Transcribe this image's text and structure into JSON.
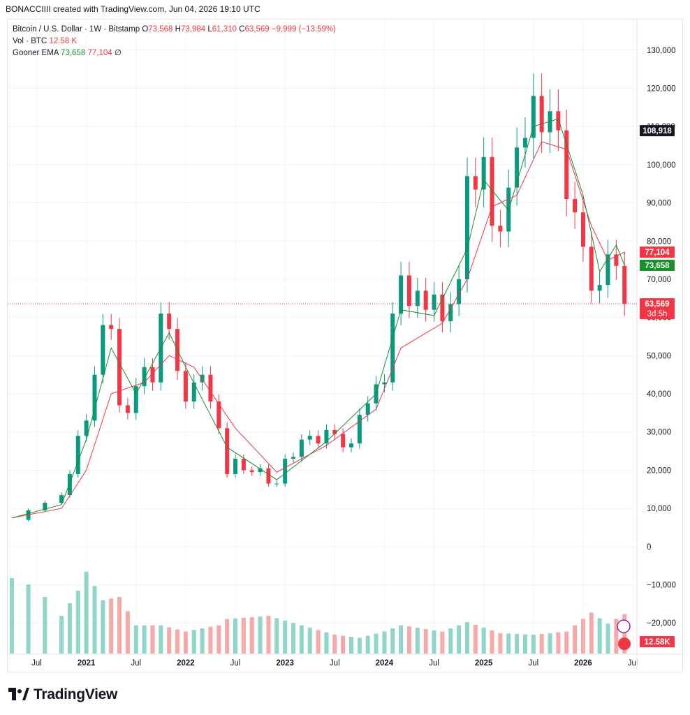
{
  "header": {
    "text": "BONACCIIII created with TradingView.com, Jun 04, 2026 19:10 UTC"
  },
  "legend": {
    "symbol": "Bitcoin / U.S. Dollar · 1W · Bitstamp",
    "o_label": "O",
    "o": "73,568",
    "h_label": "H",
    "h": "73,984",
    "l_label": "L",
    "l": "61,310",
    "c_label": "C",
    "c": "63,569",
    "change": "−9,999 (−13.59%)",
    "vol_label": "Vol · BTC",
    "vol": "12.58 K",
    "ema_label": "Gooner EMA",
    "ema_fast": "73,658",
    "ema_slow": "77,104",
    "ema_extra": "∅"
  },
  "price_badges": {
    "crosshair": "108,918",
    "ema_slow": "77,104",
    "ema_fast": "73,658",
    "last": "63,569",
    "countdown": "3d 5h",
    "volume": "12.58K"
  },
  "logo_text": "TradingView",
  "colors": {
    "up": "#089981",
    "down": "#f23645",
    "ema_fast": "#1a8f2a",
    "ema_slow": "#f23645"
  },
  "chart_data": {
    "type": "line",
    "title": "Bitcoin / U.S. Dollar · 1W · Bitstamp",
    "y_ticks": [
      "130,000",
      "120,000",
      "110,000",
      "100,000",
      "90,000",
      "80,000",
      "70,000",
      "60,000",
      "50,000",
      "40,000",
      "30,000",
      "20,000",
      "10,000",
      "0",
      "−10,000",
      "−20,000"
    ],
    "x_ticks": [
      "Jul",
      "2021",
      "Jul",
      "2022",
      "Jul",
      "2023",
      "Jul",
      "2024",
      "Jul",
      "2025",
      "Jul",
      "2026",
      "Jul"
    ],
    "ylim": [
      -28000,
      138000
    ],
    "xlim": [
      "2020-04",
      "2026-07"
    ],
    "series": [
      {
        "name": "BTCUSD close",
        "x": [
          "2020-04",
          "2020-06",
          "2020-08",
          "2020-10",
          "2020-11",
          "2020-12",
          "2021-01",
          "2021-02",
          "2021-03",
          "2021-04",
          "2021-05",
          "2021-06",
          "2021-07",
          "2021-08",
          "2021-09",
          "2021-10",
          "2021-11",
          "2021-12",
          "2022-01",
          "2022-02",
          "2022-03",
          "2022-04",
          "2022-05",
          "2022-06",
          "2022-07",
          "2022-08",
          "2022-09",
          "2022-10",
          "2022-11",
          "2022-12",
          "2023-01",
          "2023-02",
          "2023-03",
          "2023-04",
          "2023-05",
          "2023-06",
          "2023-07",
          "2023-08",
          "2023-09",
          "2023-10",
          "2023-11",
          "2023-12",
          "2024-01",
          "2024-02",
          "2024-03",
          "2024-04",
          "2024-05",
          "2024-06",
          "2024-07",
          "2024-08",
          "2024-09",
          "2024-10",
          "2024-11",
          "2024-12",
          "2025-01",
          "2025-02",
          "2025-03",
          "2025-04",
          "2025-05",
          "2025-06",
          "2025-07",
          "2025-08",
          "2025-09",
          "2025-10",
          "2025-11",
          "2025-12",
          "2026-01",
          "2026-02",
          "2026-03",
          "2026-04",
          "2026-05",
          "2026-06"
        ],
        "values": [
          7000,
          9500,
          11500,
          13500,
          19000,
          29000,
          33000,
          45000,
          58000,
          57000,
          37000,
          35000,
          42000,
          47000,
          43000,
          61000,
          57000,
          46000,
          38000,
          43000,
          45000,
          38000,
          31000,
          19000,
          23000,
          20000,
          19500,
          20500,
          16500,
          16500,
          23000,
          23500,
          28000,
          29000,
          27000,
          30500,
          29500,
          26000,
          27000,
          34500,
          37500,
          42500,
          43000,
          61000,
          71000,
          63000,
          67000,
          62000,
          66000,
          59000,
          63500,
          70000,
          97000,
          93500,
          102000,
          84000,
          82500,
          94000,
          104500,
          107000,
          118000,
          108500,
          114000,
          109000,
          91000,
          87500,
          78500,
          67000,
          68500,
          76500,
          73500,
          63569
        ]
      },
      {
        "name": "Gooner EMA fast",
        "x": [
          "2020-04",
          "2020-10",
          "2021-01",
          "2021-04",
          "2021-07",
          "2021-11",
          "2022-01",
          "2022-06",
          "2022-12",
          "2023-06",
          "2023-12",
          "2024-03",
          "2024-07",
          "2024-11",
          "2025-01",
          "2025-04",
          "2025-07",
          "2025-10",
          "2026-01",
          "2026-03",
          "2026-05",
          "2026-06"
        ],
        "values": [
          7500,
          11000,
          28000,
          52000,
          40000,
          56000,
          47000,
          26000,
          17500,
          27500,
          40000,
          62000,
          60500,
          78000,
          96000,
          88000,
          110000,
          112000,
          92000,
          72000,
          79000,
          73658
        ]
      },
      {
        "name": "Gooner EMA slow",
        "x": [
          "2020-04",
          "2020-10",
          "2021-01",
          "2021-04",
          "2021-08",
          "2021-11",
          "2022-02",
          "2022-07",
          "2022-12",
          "2023-06",
          "2023-12",
          "2024-03",
          "2024-08",
          "2024-11",
          "2025-02",
          "2025-05",
          "2025-08",
          "2025-11",
          "2026-02",
          "2026-04",
          "2026-06"
        ],
        "values": [
          7500,
          10000,
          20000,
          40000,
          43000,
          50000,
          47000,
          31000,
          19500,
          26500,
          36000,
          52000,
          58500,
          70000,
          89000,
          92000,
          106000,
          104000,
          84000,
          75000,
          77104
        ]
      },
      {
        "name": "Vol · BTC",
        "x": [
          "2020-04",
          "2020-06",
          "2020-08",
          "2020-10",
          "2020-12",
          "2021-01",
          "2021-03",
          "2021-05",
          "2021-07",
          "2021-10",
          "2022-01",
          "2022-05",
          "2022-06",
          "2022-11",
          "2023-03",
          "2023-07",
          "2023-10",
          "2024-01",
          "2024-03",
          "2024-08",
          "2024-11",
          "2025-03",
          "2025-07",
          "2025-11",
          "2026-02",
          "2026-04",
          "2026-06"
        ],
        "values": [
          24000,
          22000,
          18000,
          12000,
          20000,
          26000,
          17000,
          18000,
          9000,
          9000,
          7000,
          9000,
          11000,
          12000,
          9000,
          6000,
          5000,
          7000,
          9000,
          7000,
          10000,
          6500,
          6000,
          7000,
          13000,
          9500,
          12580
        ]
      }
    ],
    "ylabel": "",
    "xlabel": "",
    "grid": true
  }
}
